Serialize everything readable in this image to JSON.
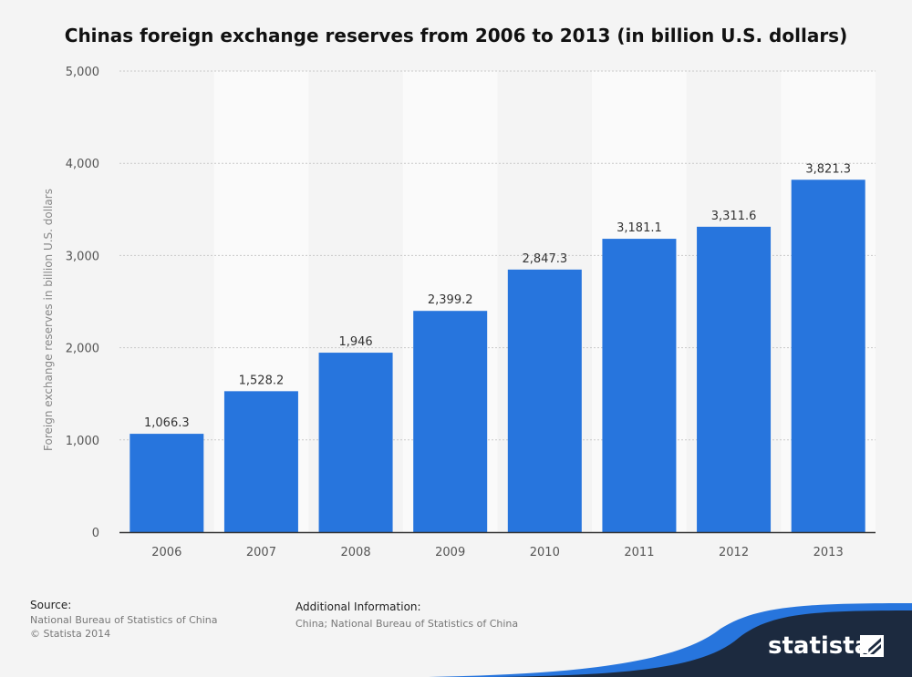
{
  "title": "Chinas foreign exchange reserves from 2006 to 2013 (in billion U.S. dollars)",
  "colors": {
    "bar": "#2775dd",
    "band": "#fafafa",
    "grid": "#c9c9c9",
    "axis": "#333333",
    "brand_dark": "#1c2a3f",
    "brand_accent": "#2775dd"
  },
  "chart_data": {
    "type": "bar",
    "title": "Chinas foreign exchange reserves from 2006 to 2013 (in billion U.S. dollars)",
    "xlabel": "",
    "ylabel": "Foreign exchange reserves in billion U.S. dollars",
    "categories": [
      "2006",
      "2007",
      "2008",
      "2009",
      "2010",
      "2011",
      "2012",
      "2013"
    ],
    "values": [
      1066.3,
      1528.2,
      1946,
      2399.2,
      2847.3,
      3181.1,
      3311.6,
      3821.3
    ],
    "value_labels": [
      "1,066.3",
      "1,528.2",
      "1,946",
      "2,399.2",
      "2,847.3",
      "3,181.1",
      "3,311.6",
      "3,821.3"
    ],
    "ylim": [
      0,
      5000
    ],
    "yticks": [
      0,
      1000,
      2000,
      3000,
      4000,
      5000
    ],
    "ytick_labels": [
      "0",
      "1,000",
      "2,000",
      "3,000",
      "4,000",
      "5,000"
    ],
    "grid": true
  },
  "footer": {
    "source_heading": "Source:",
    "source_line1": "National Bureau of Statistics of China",
    "source_line2": "© Statista 2014",
    "additional_heading": "Additional Information:",
    "additional_text": "China; National Bureau of Statistics of China"
  },
  "brand": {
    "name": "statista"
  }
}
